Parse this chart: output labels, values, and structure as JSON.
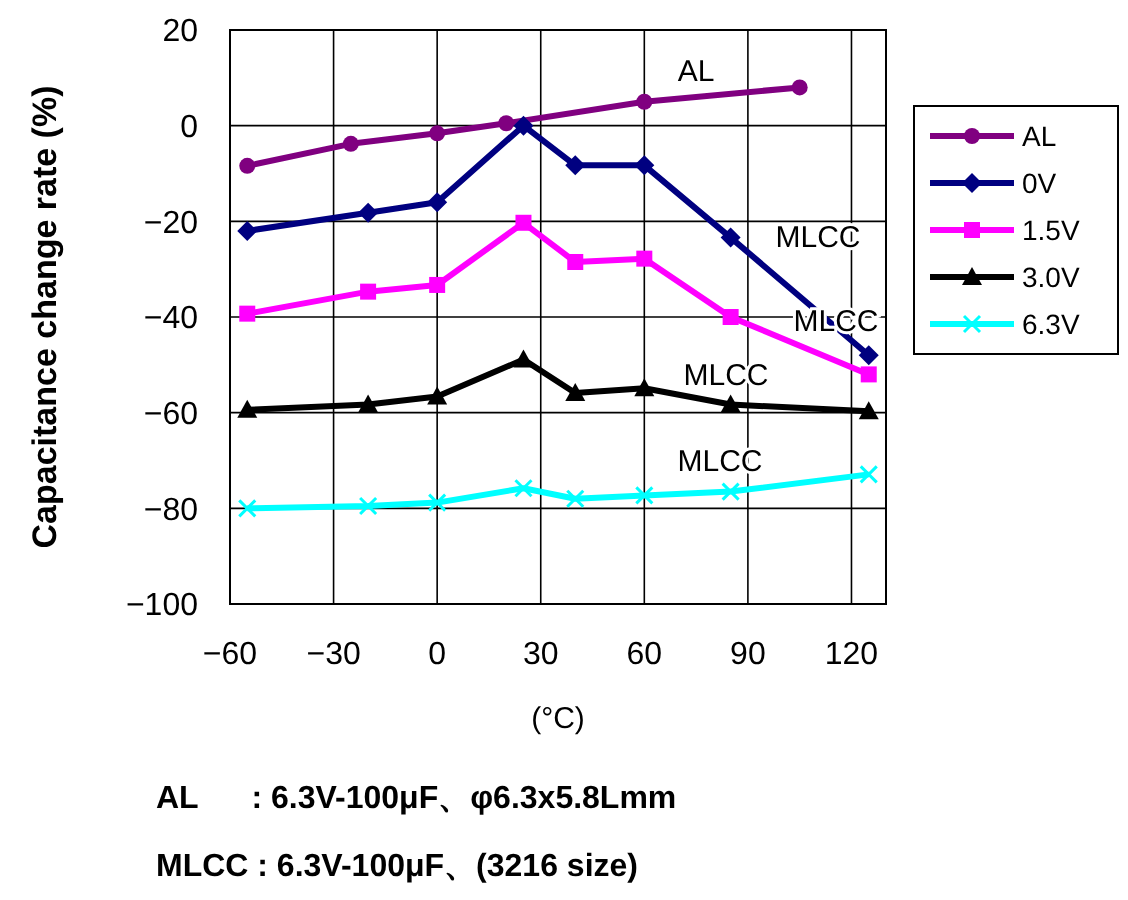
{
  "chart_data": {
    "type": "line",
    "xlabel": "(°C)",
    "ylabel": "Capacitance change rate (%)",
    "xlim": [
      -60,
      130
    ],
    "xticks": [
      -60,
      -30,
      0,
      30,
      60,
      90,
      120
    ],
    "ylim": [
      -100,
      20
    ],
    "yticks": [
      -100,
      -80,
      -60,
      -40,
      -20,
      0,
      20
    ],
    "grid": true,
    "legend": "right",
    "series": [
      {
        "name": "AL",
        "color": "#800080",
        "marker": "circle",
        "x": [
          -55,
          -25,
          0,
          20,
          60,
          105
        ],
        "values": [
          -8.4,
          -3.8,
          -1.6,
          0.5,
          5,
          8
        ]
      },
      {
        "name": "0V",
        "color": "#000080",
        "marker": "diamond",
        "x": [
          -55,
          -20,
          0,
          25,
          40,
          60,
          85,
          125
        ],
        "values": [
          -22,
          -18.2,
          -16,
          0,
          -8.3,
          -8.3,
          -23.4,
          -48
        ]
      },
      {
        "name": "1.5V",
        "color": "#ff00ff",
        "marker": "square",
        "x": [
          -55,
          -20,
          0,
          25,
          40,
          60,
          85,
          125
        ],
        "values": [
          -39.3,
          -34.7,
          -33.3,
          -20.3,
          -28.5,
          -27.8,
          -40,
          -52
        ]
      },
      {
        "name": "3.0V",
        "color": "#000000",
        "marker": "triangle",
        "x": [
          -55,
          -20,
          0,
          25,
          40,
          60,
          85,
          125
        ],
        "values": [
          -59.4,
          -58.3,
          -56.6,
          -48.9,
          -55.9,
          -54.9,
          -58.3,
          -59.7
        ]
      },
      {
        "name": "6.3V",
        "color": "#00ffff",
        "marker": "cross",
        "x": [
          -55,
          -20,
          0,
          25,
          40,
          60,
          85,
          125
        ],
        "values": [
          -80,
          -79.5,
          -78.8,
          -75.8,
          -78,
          -77.3,
          -76.5,
          -72.9
        ]
      }
    ],
    "annotations": [
      "AL",
      "MLCC",
      "MLCC",
      "MLCC",
      "MLCC",
      "AL      : 6.3V-100μF、φ6.3x5.8Lmm",
      "MLCC : 6.3V-100μF、(3216 size)"
    ]
  }
}
